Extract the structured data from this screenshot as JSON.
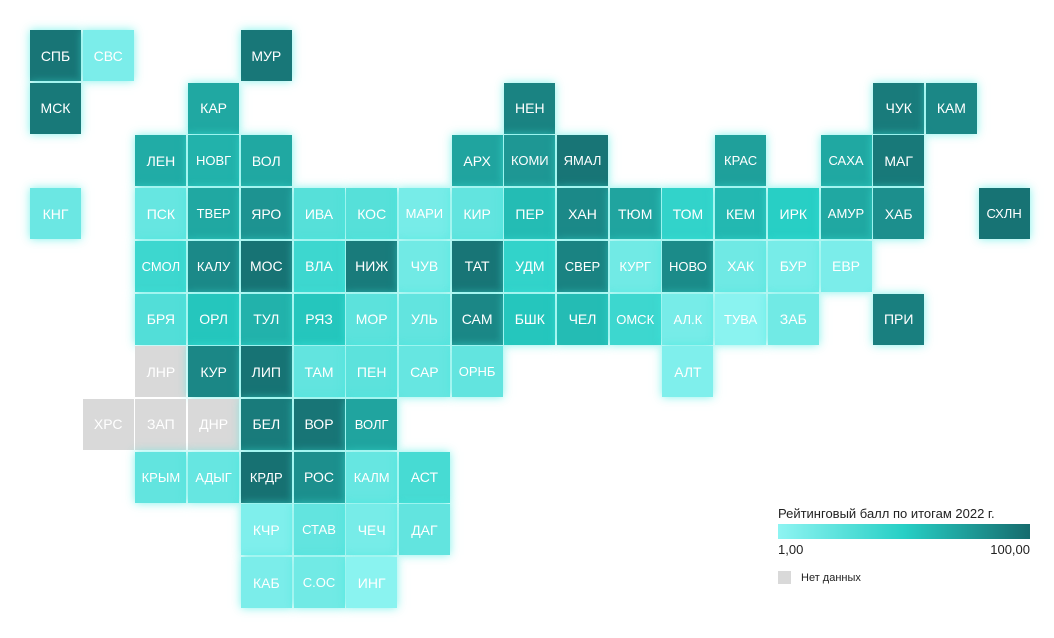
{
  "colors": {
    "low": "#8ef4f2",
    "mid": "#27cfc5",
    "high": "#166b6d",
    "nodata": "#d9d9d9"
  },
  "legend": {
    "title": "Рейтинговый балл по итогам 2022 г.",
    "min_label": "1,00",
    "max_label": "100,00",
    "nodata_label": "Нет данных"
  },
  "regions": [
    {
      "label": "СПБ",
      "row": 0,
      "col": 0,
      "score": 95
    },
    {
      "label": "СВС",
      "row": 0,
      "col": 1,
      "score": 10
    },
    {
      "label": "МУР",
      "row": 0,
      "col": 4,
      "score": 94
    },
    {
      "label": "МСК",
      "row": 1,
      "col": 0,
      "score": 93
    },
    {
      "label": "КАР",
      "row": 1,
      "col": 3,
      "score": 70
    },
    {
      "label": "НЕН",
      "row": 1,
      "col": 9,
      "score": 88
    },
    {
      "label": "ЧУК",
      "row": 1,
      "col": 16,
      "score": 92
    },
    {
      "label": "КАМ",
      "row": 1,
      "col": 17,
      "score": 86
    },
    {
      "label": "ЛЕН",
      "row": 2,
      "col": 2,
      "score": 68
    },
    {
      "label": "НОВГ",
      "row": 2,
      "col": 3,
      "score": 65
    },
    {
      "label": "ВОЛ",
      "row": 2,
      "col": 4,
      "score": 70
    },
    {
      "label": "АРХ",
      "row": 2,
      "col": 8,
      "score": 72
    },
    {
      "label": "КОМИ",
      "row": 2,
      "col": 9,
      "score": 78
    },
    {
      "label": "ЯМАЛ",
      "row": 2,
      "col": 10,
      "score": 95
    },
    {
      "label": "КРАС",
      "row": 2,
      "col": 13,
      "score": 74
    },
    {
      "label": "САХА",
      "row": 2,
      "col": 15,
      "score": 70
    },
    {
      "label": "МАГ",
      "row": 2,
      "col": 16,
      "score": 93
    },
    {
      "label": "КНГ",
      "row": 3,
      "col": 0,
      "score": 18
    },
    {
      "label": "ПСК",
      "row": 3,
      "col": 2,
      "score": 20
    },
    {
      "label": "ТВЕР",
      "row": 3,
      "col": 3,
      "score": 70
    },
    {
      "label": "ЯРО",
      "row": 3,
      "col": 4,
      "score": 80
    },
    {
      "label": "ИВА",
      "row": 3,
      "col": 5,
      "score": 28
    },
    {
      "label": "КОС",
      "row": 3,
      "col": 6,
      "score": 28
    },
    {
      "label": "МАРИ",
      "row": 3,
      "col": 7,
      "score": 12
    },
    {
      "label": "КИР",
      "row": 3,
      "col": 8,
      "score": 22
    },
    {
      "label": "ПЕР",
      "row": 3,
      "col": 9,
      "score": 60
    },
    {
      "label": "ХАН",
      "row": 3,
      "col": 10,
      "score": 85
    },
    {
      "label": "ТЮМ",
      "row": 3,
      "col": 11,
      "score": 72
    },
    {
      "label": "ТОМ",
      "row": 3,
      "col": 12,
      "score": 45
    },
    {
      "label": "КЕМ",
      "row": 3,
      "col": 13,
      "score": 62
    },
    {
      "label": "ИРК",
      "row": 3,
      "col": 14,
      "score": 50
    },
    {
      "label": "АМУР",
      "row": 3,
      "col": 15,
      "score": 70
    },
    {
      "label": "ХАБ",
      "row": 3,
      "col": 16,
      "score": 82
    },
    {
      "label": "СХЛН",
      "row": 3,
      "col": 18,
      "score": 96
    },
    {
      "label": "СМОЛ",
      "row": 4,
      "col": 2,
      "score": 40
    },
    {
      "label": "КАЛУ",
      "row": 4,
      "col": 3,
      "score": 85
    },
    {
      "label": "МОС",
      "row": 4,
      "col": 4,
      "score": 96
    },
    {
      "label": "ВЛА",
      "row": 4,
      "col": 5,
      "score": 40
    },
    {
      "label": "НИЖ",
      "row": 4,
      "col": 6,
      "score": 92
    },
    {
      "label": "ЧУВ",
      "row": 4,
      "col": 7,
      "score": 15
    },
    {
      "label": "ТАТ",
      "row": 4,
      "col": 8,
      "score": 95
    },
    {
      "label": "УДМ",
      "row": 4,
      "col": 9,
      "score": 45
    },
    {
      "label": "СВЕР",
      "row": 4,
      "col": 10,
      "score": 88
    },
    {
      "label": "КУРГ",
      "row": 4,
      "col": 11,
      "score": 15
    },
    {
      "label": "НОВО",
      "row": 4,
      "col": 12,
      "score": 84
    },
    {
      "label": "ХАК",
      "row": 4,
      "col": 13,
      "score": 16
    },
    {
      "label": "БУР",
      "row": 4,
      "col": 14,
      "score": 12
    },
    {
      "label": "ЕВР",
      "row": 4,
      "col": 15,
      "score": 10
    },
    {
      "label": "БРЯ",
      "row": 5,
      "col": 2,
      "score": 30
    },
    {
      "label": "ОРЛ",
      "row": 5,
      "col": 3,
      "score": 55
    },
    {
      "label": "ТУЛ",
      "row": 5,
      "col": 4,
      "score": 65
    },
    {
      "label": "РЯЗ",
      "row": 5,
      "col": 5,
      "score": 55
    },
    {
      "label": "МОР",
      "row": 5,
      "col": 6,
      "score": 25
    },
    {
      "label": "УЛЬ",
      "row": 5,
      "col": 7,
      "score": 22
    },
    {
      "label": "САМ",
      "row": 5,
      "col": 8,
      "score": 86
    },
    {
      "label": "БШК",
      "row": 5,
      "col": 9,
      "score": 55
    },
    {
      "label": "ЧЕЛ",
      "row": 5,
      "col": 10,
      "score": 60
    },
    {
      "label": "ОМСК",
      "row": 5,
      "col": 11,
      "score": 40
    },
    {
      "label": "АЛ.К",
      "row": 5,
      "col": 12,
      "score": 12
    },
    {
      "label": "ТУВА",
      "row": 5,
      "col": 13,
      "score": 3
    },
    {
      "label": "ЗАБ",
      "row": 5,
      "col": 14,
      "score": 15
    },
    {
      "label": "ПРИ",
      "row": 5,
      "col": 16,
      "score": 90
    },
    {
      "label": "ЛНР",
      "row": 6,
      "col": 2,
      "nodata": true
    },
    {
      "label": "КУР",
      "row": 6,
      "col": 3,
      "score": 86
    },
    {
      "label": "ЛИП",
      "row": 6,
      "col": 4,
      "score": 96
    },
    {
      "label": "ТАМ",
      "row": 6,
      "col": 5,
      "score": 22
    },
    {
      "label": "ПЕН",
      "row": 6,
      "col": 6,
      "score": 25
    },
    {
      "label": "САР",
      "row": 6,
      "col": 7,
      "score": 20
    },
    {
      "label": "ОРНБ",
      "row": 6,
      "col": 8,
      "score": 22
    },
    {
      "label": "АЛТ",
      "row": 6,
      "col": 12,
      "score": 8
    },
    {
      "label": "ХРС",
      "row": 7,
      "col": 1,
      "nodata": true
    },
    {
      "label": "ЗАП",
      "row": 7,
      "col": 2,
      "nodata": true
    },
    {
      "label": "ДНР",
      "row": 7,
      "col": 3,
      "nodata": true
    },
    {
      "label": "БЕЛ",
      "row": 7,
      "col": 4,
      "score": 92
    },
    {
      "label": "ВОР",
      "row": 7,
      "col": 5,
      "score": 95
    },
    {
      "label": "ВОЛГ",
      "row": 7,
      "col": 6,
      "score": 72
    },
    {
      "label": "КРЫМ",
      "row": 8,
      "col": 2,
      "score": 22
    },
    {
      "label": "АДЫГ",
      "row": 8,
      "col": 3,
      "score": 20
    },
    {
      "label": "КРДР",
      "row": 8,
      "col": 4,
      "score": 97
    },
    {
      "label": "РОС",
      "row": 8,
      "col": 5,
      "score": 82
    },
    {
      "label": "КАЛМ",
      "row": 8,
      "col": 6,
      "score": 20
    },
    {
      "label": "АСТ",
      "row": 8,
      "col": 7,
      "score": 35
    },
    {
      "label": "КЧР",
      "row": 9,
      "col": 4,
      "score": 8
    },
    {
      "label": "СТАВ",
      "row": 9,
      "col": 5,
      "score": 22
    },
    {
      "label": "ЧЕЧ",
      "row": 9,
      "col": 6,
      "score": 12
    },
    {
      "label": "ДАГ",
      "row": 9,
      "col": 7,
      "score": 22
    },
    {
      "label": "КАБ",
      "row": 10,
      "col": 4,
      "score": 10
    },
    {
      "label": "С.ОС",
      "row": 10,
      "col": 5,
      "score": 15
    },
    {
      "label": "ИНГ",
      "row": 10,
      "col": 6,
      "score": 3
    }
  ]
}
